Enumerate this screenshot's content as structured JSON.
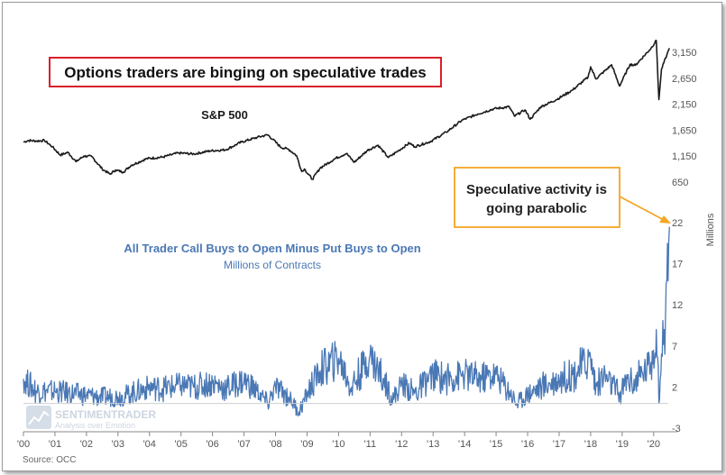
{
  "chart_data": {
    "type": "line",
    "title": "Options traders are binging on speculative trades",
    "title_border_color": "#d9202a",
    "x_ticks": [
      "'00",
      "'01",
      "'02",
      "'03",
      "'04",
      "'05",
      "'06",
      "'07",
      "'08",
      "'09",
      "'10",
      "'11",
      "'12",
      "'13",
      "'14",
      "'15",
      "'16",
      "'17",
      "'18",
      "'19",
      "'20"
    ],
    "source": "Source: OCC",
    "watermark": {
      "brand": "SENTIMENTRADER",
      "tagline": "Analysis over Emotion"
    },
    "callout": {
      "lines": [
        "Speculative activity is",
        "going parabolic"
      ],
      "border_color": "#f5a623",
      "arrow_color": "#f5a623"
    },
    "panels": [
      {
        "name": "S&P 500",
        "color": "#1a1a1a",
        "y_ticks": [
          3150,
          2650,
          2150,
          1650,
          1150,
          650
        ],
        "ylim": [
          300,
          3500
        ],
        "points": [
          [
            "2000-01",
            1420
          ],
          [
            "2000-03",
            1450
          ],
          [
            "2000-06",
            1440
          ],
          [
            "2000-09",
            1450
          ],
          [
            "2000-12",
            1330
          ],
          [
            "2001-03",
            1170
          ],
          [
            "2001-06",
            1220
          ],
          [
            "2001-09",
            1040
          ],
          [
            "2001-12",
            1150
          ],
          [
            "2002-03",
            1140
          ],
          [
            "2002-07",
            900
          ],
          [
            "2002-10",
            800
          ],
          [
            "2002-12",
            880
          ],
          [
            "2003-03",
            840
          ],
          [
            "2003-06",
            970
          ],
          [
            "2003-12",
            1100
          ],
          [
            "2004-06",
            1130
          ],
          [
            "2004-12",
            1210
          ],
          [
            "2005-06",
            1190
          ],
          [
            "2005-12",
            1250
          ],
          [
            "2006-06",
            1270
          ],
          [
            "2006-12",
            1420
          ],
          [
            "2007-06",
            1510
          ],
          [
            "2007-10",
            1560
          ],
          [
            "2007-12",
            1470
          ],
          [
            "2008-03",
            1320
          ],
          [
            "2008-06",
            1280
          ],
          [
            "2008-09",
            1160
          ],
          [
            "2008-11",
            850
          ],
          [
            "2008-12",
            900
          ],
          [
            "2009-03",
            700
          ],
          [
            "2009-06",
            920
          ],
          [
            "2009-12",
            1110
          ],
          [
            "2010-04",
            1200
          ],
          [
            "2010-07",
            1030
          ],
          [
            "2010-12",
            1260
          ],
          [
            "2011-04",
            1360
          ],
          [
            "2011-08",
            1120
          ],
          [
            "2011-12",
            1260
          ],
          [
            "2012-04",
            1400
          ],
          [
            "2012-06",
            1330
          ],
          [
            "2012-12",
            1430
          ],
          [
            "2013-06",
            1610
          ],
          [
            "2013-12",
            1840
          ],
          [
            "2014-06",
            1960
          ],
          [
            "2014-12",
            2060
          ],
          [
            "2015-06",
            2100
          ],
          [
            "2015-08",
            1920
          ],
          [
            "2015-12",
            2040
          ],
          [
            "2016-02",
            1860
          ],
          [
            "2016-06",
            2100
          ],
          [
            "2016-12",
            2240
          ],
          [
            "2017-06",
            2420
          ],
          [
            "2017-12",
            2670
          ],
          [
            "2018-01",
            2870
          ],
          [
            "2018-03",
            2640
          ],
          [
            "2018-09",
            2910
          ],
          [
            "2018-12",
            2500
          ],
          [
            "2019-04",
            2920
          ],
          [
            "2019-06",
            2900
          ],
          [
            "2019-12",
            3230
          ],
          [
            "2020-02",
            3380
          ],
          [
            "2020-03",
            2240
          ],
          [
            "2020-04",
            2830
          ],
          [
            "2020-06",
            3100
          ],
          [
            "2020-07",
            3230
          ]
        ]
      },
      {
        "name": "All Trader Call Buys to Open  Minus Put Buys to Open",
        "subtitle": "Millions of Contracts",
        "unit_label": "Millions",
        "color": "#4a78b5",
        "y_ticks": [
          22,
          17,
          12,
          7,
          2,
          -3
        ],
        "ylim": [
          -3,
          22
        ],
        "points": [
          [
            "2000-01",
            3
          ],
          [
            "2000-06",
            1.5
          ],
          [
            "2001-01",
            1.5
          ],
          [
            "2001-06",
            1.3
          ],
          [
            "2002-01",
            1
          ],
          [
            "2002-06",
            0.8
          ],
          [
            "2003-01",
            0.8
          ],
          [
            "2003-06",
            1.2
          ],
          [
            "2004-01",
            2
          ],
          [
            "2004-06",
            1.8
          ],
          [
            "2005-01",
            2.2
          ],
          [
            "2005-06",
            2
          ],
          [
            "2006-01",
            2.5
          ],
          [
            "2006-06",
            1.8
          ],
          [
            "2007-01",
            2.8
          ],
          [
            "2007-06",
            1.5
          ],
          [
            "2007-10",
            0
          ],
          [
            "2008-01",
            2
          ],
          [
            "2008-06",
            0.8
          ],
          [
            "2008-10",
            -1
          ],
          [
            "2009-01",
            1.2
          ],
          [
            "2009-06",
            4
          ],
          [
            "2010-01",
            5.5
          ],
          [
            "2010-06",
            2
          ],
          [
            "2011-01",
            5.8
          ],
          [
            "2011-06",
            3
          ],
          [
            "2011-10",
            0.5
          ],
          [
            "2012-01",
            2.5
          ],
          [
            "2012-06",
            1.2
          ],
          [
            "2013-01",
            3.5
          ],
          [
            "2013-06",
            3
          ],
          [
            "2014-01",
            3.5
          ],
          [
            "2014-06",
            3
          ],
          [
            "2015-01",
            3.5
          ],
          [
            "2015-06",
            1.5
          ],
          [
            "2015-09",
            0
          ],
          [
            "2016-01",
            1.2
          ],
          [
            "2016-06",
            2
          ],
          [
            "2017-01",
            3
          ],
          [
            "2017-06",
            3.5
          ],
          [
            "2018-01",
            5.5
          ],
          [
            "2018-03",
            2
          ],
          [
            "2018-06",
            3.5
          ],
          [
            "2018-12",
            1
          ],
          [
            "2019-03",
            3
          ],
          [
            "2019-06",
            2.5
          ],
          [
            "2019-12",
            5
          ],
          [
            "2020-02",
            9
          ],
          [
            "2020-03",
            0
          ],
          [
            "2020-04",
            6
          ],
          [
            "2020-05",
            9
          ],
          [
            "2020-06",
            15
          ],
          [
            "2020-07",
            21.5
          ]
        ]
      }
    ]
  }
}
